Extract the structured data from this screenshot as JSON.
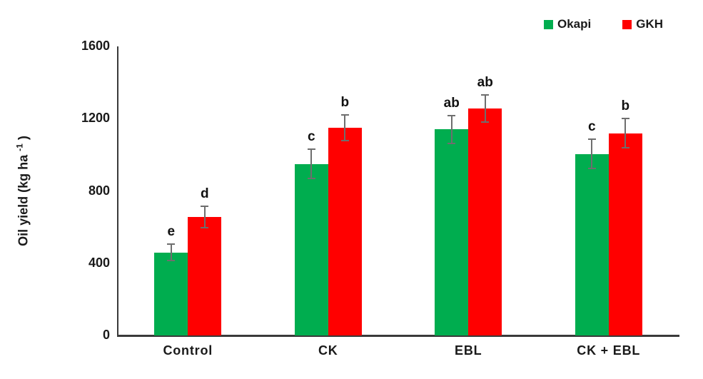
{
  "chart_data": {
    "type": "bar",
    "title": "",
    "xlabel": "",
    "ylabel_text": "Oil yield (kg ha ",
    "ylabel_sup": "-1",
    "ylabel_close": " )",
    "ylim": [
      0,
      1600
    ],
    "yticks": [
      0,
      400,
      800,
      1200,
      1600
    ],
    "grid": false,
    "legend_position": "top-right",
    "categories": [
      "Control",
      "CK",
      "EBL",
      "CK + EBL"
    ],
    "series": [
      {
        "name": "Okapi",
        "color": "#00AD4F",
        "values": [
          460,
          950,
          1140,
          1005
        ],
        "errors": [
          45,
          80,
          78,
          80
        ],
        "letters": [
          "e",
          "c",
          "ab",
          "c"
        ]
      },
      {
        "name": "GKH",
        "color": "#FF0000",
        "values": [
          655,
          1150,
          1255,
          1120
        ],
        "errors": [
          60,
          70,
          75,
          80
        ],
        "letters": [
          "d",
          "b",
          "ab",
          "b"
        ]
      }
    ],
    "error_bar_color": "#6e6e6e",
    "axis_color": "#3a3a3a"
  }
}
